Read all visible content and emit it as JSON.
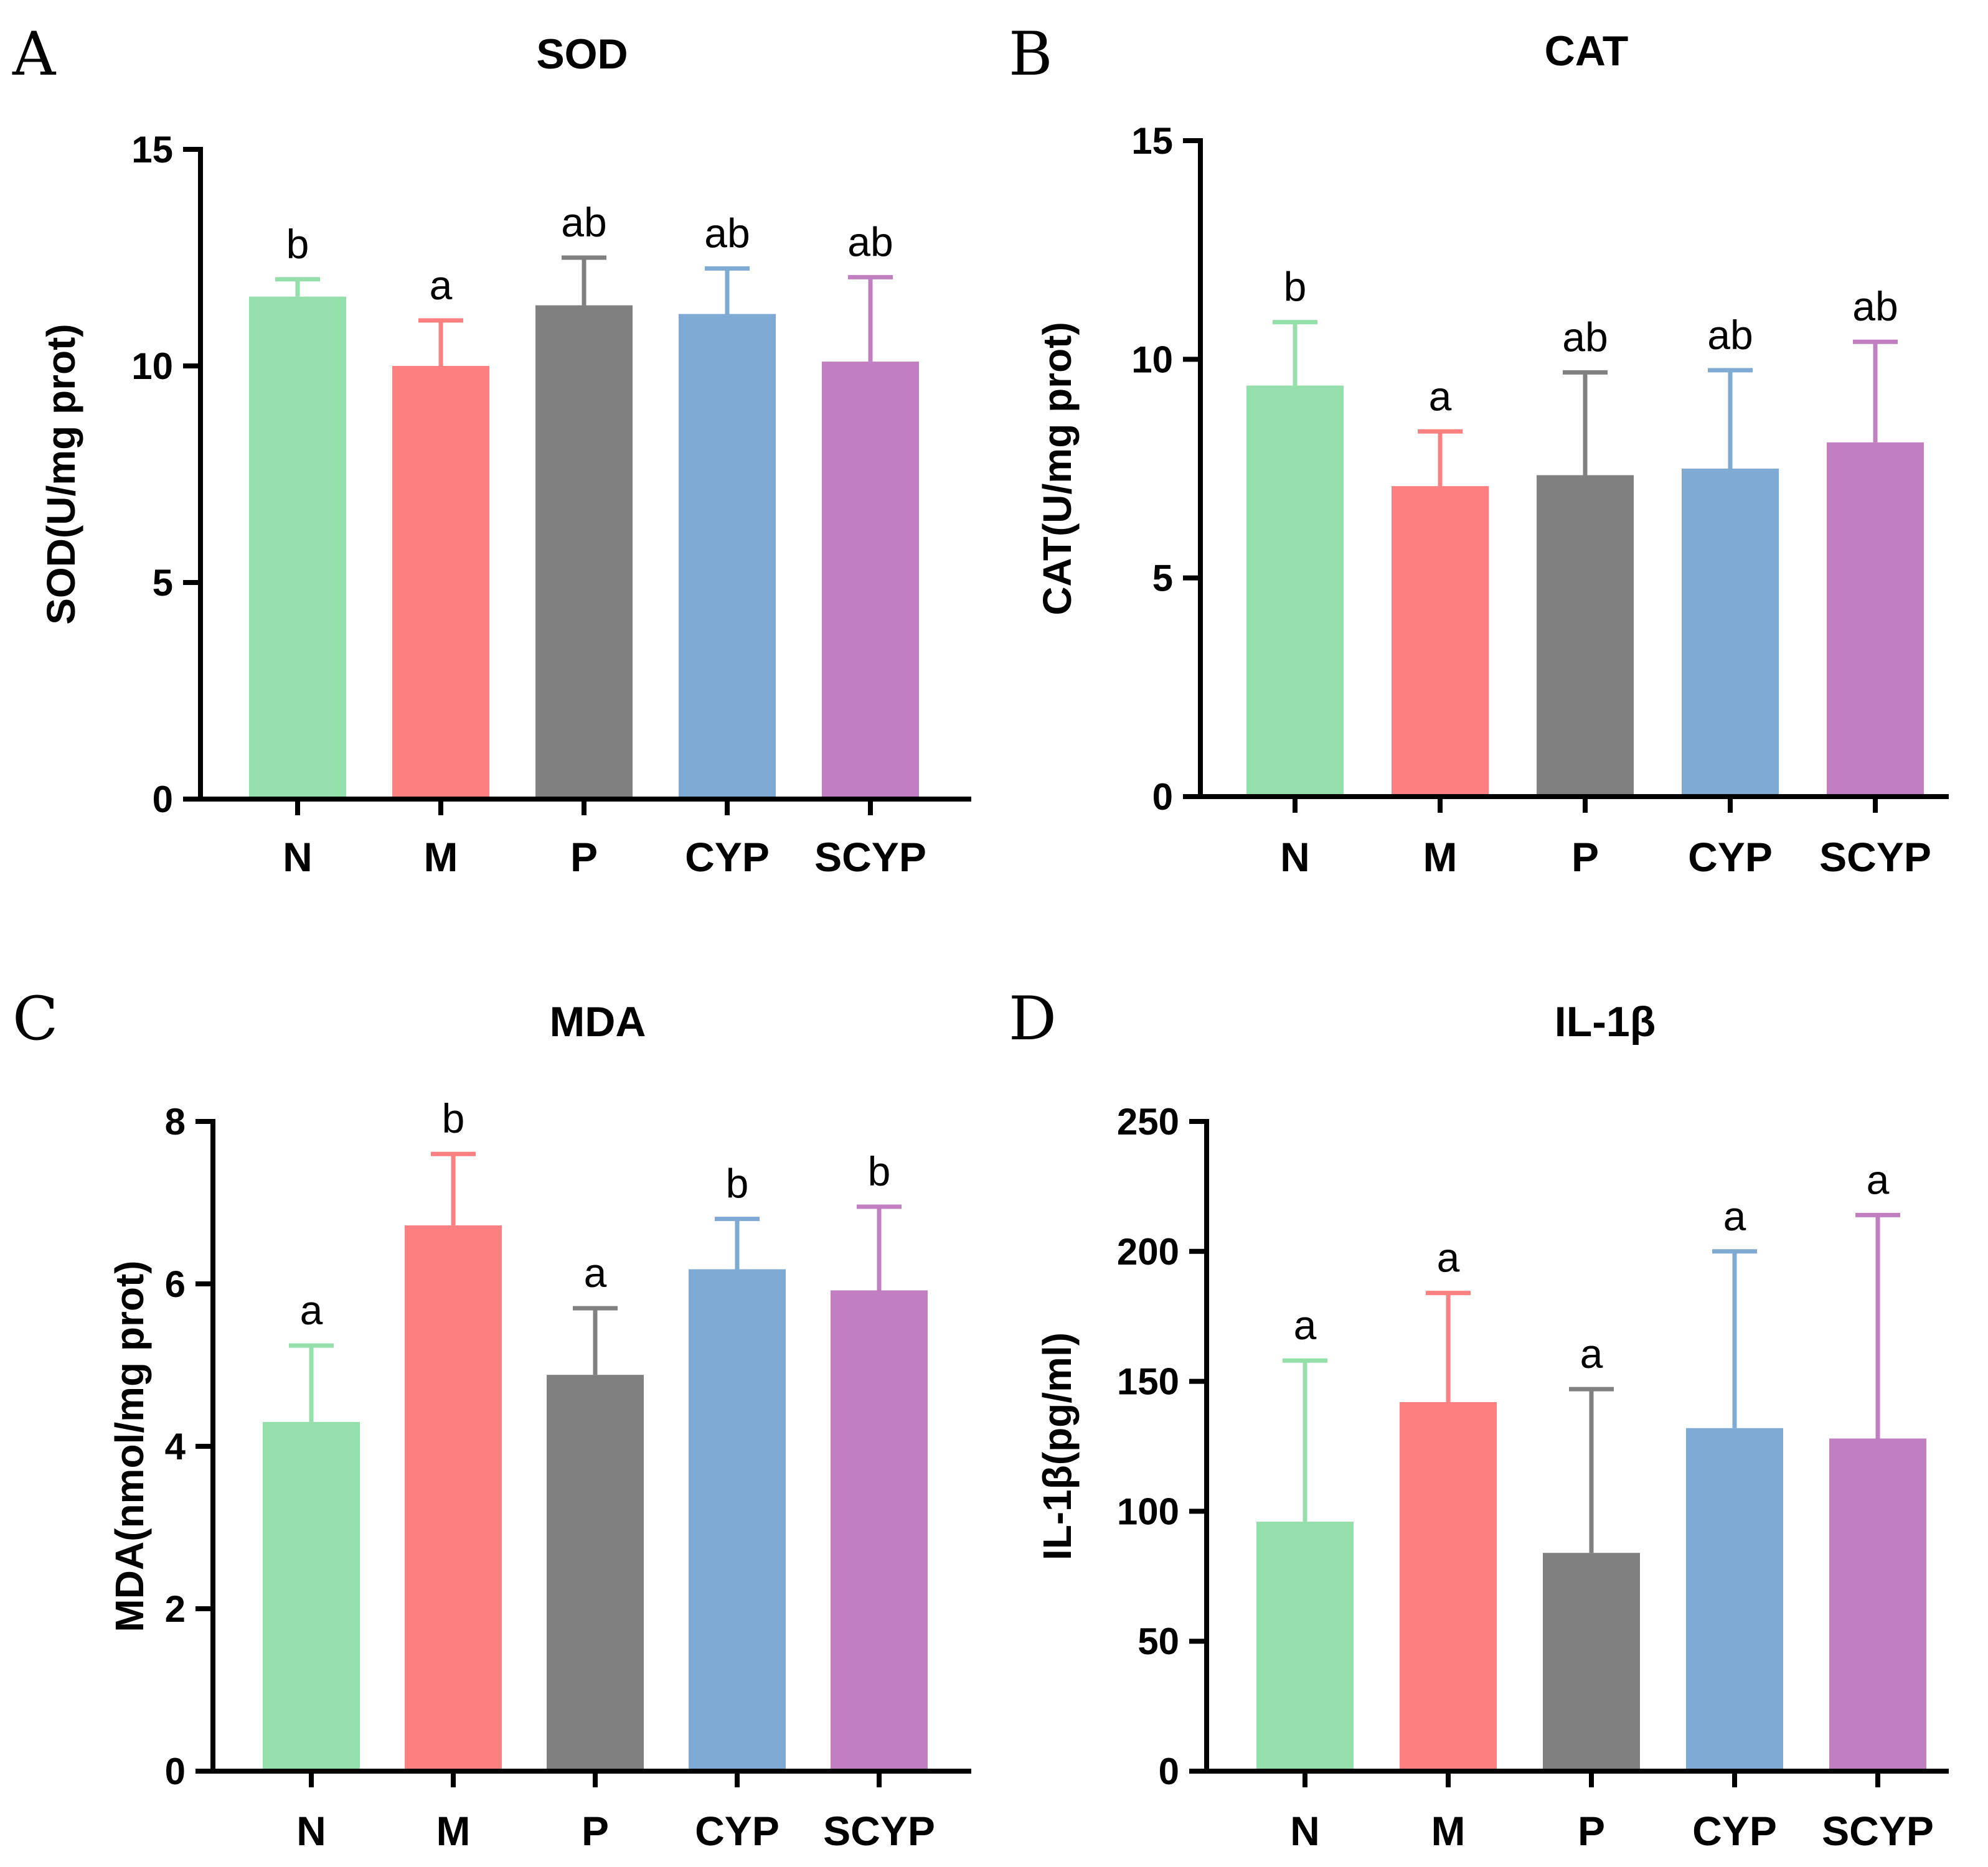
{
  "colors": {
    "N": "#95dfab",
    "M": "#fc8080",
    "P": "#808080",
    "CYP": "#7eaad4",
    "SCYP": "#c17fc2"
  },
  "chart_data": [
    {
      "panel": "A",
      "type": "bar",
      "title": "SOD",
      "ylabel": "SOD(U/mg prot)",
      "xlabel": "",
      "categories": [
        "N",
        "M",
        "P",
        "CYP",
        "SCYP"
      ],
      "values": [
        11.6,
        10.0,
        11.4,
        11.2,
        10.1
      ],
      "errors": [
        0.4,
        1.05,
        1.1,
        1.05,
        1.95
      ],
      "significance": [
        "b",
        "a",
        "ab",
        "ab",
        "ab"
      ],
      "ylim": [
        0,
        15
      ],
      "yticks": [
        0,
        5,
        10,
        15
      ],
      "ytick_labels": [
        "0",
        "5",
        "10",
        "15"
      ]
    },
    {
      "panel": "B",
      "type": "bar",
      "title": "CAT",
      "ylabel": "CAT(U/mg prot)",
      "xlabel": "",
      "categories": [
        "N",
        "M",
        "P",
        "CYP",
        "SCYP"
      ],
      "values": [
        9.4,
        7.1,
        7.35,
        7.5,
        8.1
      ],
      "errors": [
        1.45,
        1.25,
        2.35,
        2.25,
        2.3
      ],
      "significance": [
        "b",
        "a",
        "ab",
        "ab",
        "ab"
      ],
      "ylim": [
        0,
        15
      ],
      "yticks": [
        0,
        5,
        10,
        15
      ],
      "ytick_labels": [
        "0",
        "5",
        "10",
        "15"
      ]
    },
    {
      "panel": "C",
      "type": "bar",
      "title": "MDA",
      "ylabel": "MDA(nmol/mg prot)",
      "xlabel": "",
      "categories": [
        "N",
        "M",
        "P",
        "CYP",
        "SCYP"
      ],
      "values": [
        4.3,
        6.72,
        4.88,
        6.18,
        5.92
      ],
      "errors": [
        0.94,
        0.88,
        0.82,
        0.62,
        1.03
      ],
      "significance": [
        "a",
        "b",
        "a",
        "b",
        "b"
      ],
      "ylim": [
        0,
        8
      ],
      "yticks": [
        0,
        2,
        4,
        6,
        8
      ],
      "ytick_labels": [
        "0",
        "2",
        "4",
        "6",
        "8"
      ]
    },
    {
      "panel": "D",
      "type": "bar",
      "title": "IL-1β",
      "ylabel": "IL-1β(pg/ml)",
      "xlabel": "",
      "categories": [
        "N",
        "M",
        "P",
        "CYP",
        "SCYP"
      ],
      "values": [
        96,
        142,
        84,
        132,
        128
      ],
      "errors": [
        62,
        42,
        63,
        68,
        86
      ],
      "significance": [
        "a",
        "a",
        "a",
        "a",
        "a"
      ],
      "ylim": [
        0,
        250
      ],
      "yticks": [
        0,
        50,
        100,
        150,
        200,
        250
      ],
      "ytick_labels": [
        "0",
        "50",
        "100",
        "150",
        "200",
        "250"
      ]
    }
  ]
}
